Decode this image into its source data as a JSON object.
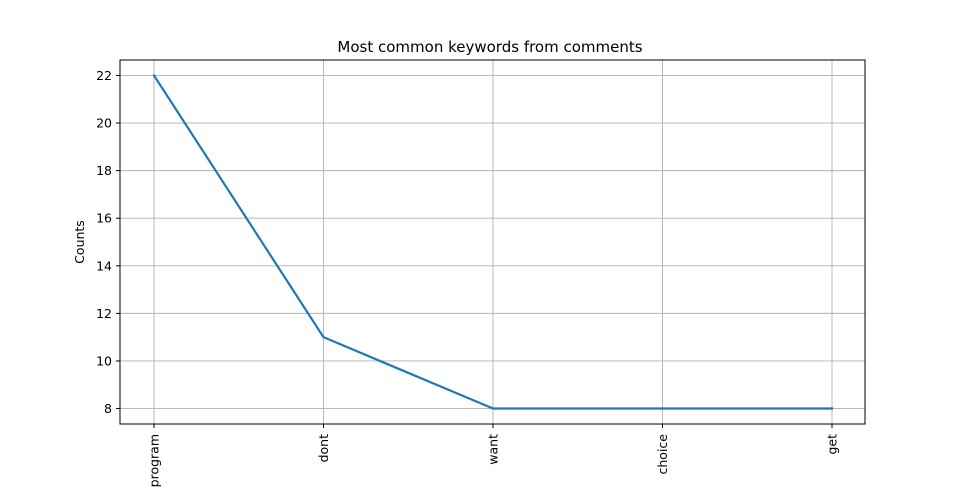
{
  "chart_data": {
    "type": "line",
    "title": "Most common keywords from comments",
    "xlabel": "",
    "ylabel": "Counts",
    "categories": [
      "program",
      "dont",
      "want",
      "choice",
      "get"
    ],
    "series": [
      {
        "values": [
          22,
          11,
          8,
          8,
          8
        ]
      }
    ],
    "ylim": [
      7.35,
      22.65
    ],
    "yticks": [
      8,
      10,
      12,
      14,
      16,
      18,
      20,
      22
    ],
    "x_tick_rotation": "vertical",
    "grid": true,
    "legend": "none",
    "colors": {
      "series": "#1f77b4",
      "grid": "#b0b0b0",
      "axes": "#000000",
      "background": "#ffffff"
    }
  }
}
